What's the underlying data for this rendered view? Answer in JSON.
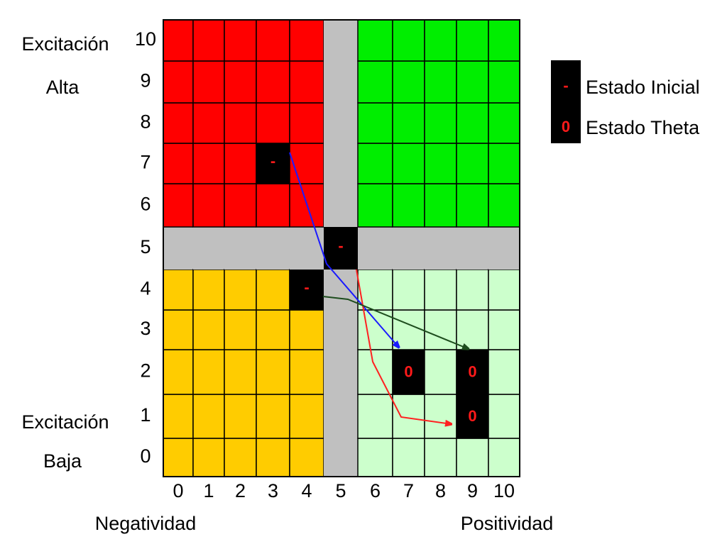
{
  "y_labels": {
    "top": [
      "Excitación",
      "Alta"
    ],
    "bottom": [
      "Excitación",
      "Baja"
    ]
  },
  "x_labels": {
    "left": "Negatividad",
    "right": "Positividad"
  },
  "x_ticks": [
    "0",
    "1",
    "2",
    "3",
    "4",
    "5",
    "6",
    "7",
    "8",
    "9",
    "10"
  ],
  "y_ticks": [
    "0",
    "1",
    "2",
    "3",
    "4",
    "5",
    "6",
    "7",
    "8",
    "9",
    "10"
  ],
  "grid_markers": {
    "initial": [
      "-",
      "-",
      "-"
    ],
    "theta": [
      "0",
      "0",
      "0"
    ]
  },
  "legend": [
    {
      "symbol": "-",
      "label": "Estado Inicial"
    },
    {
      "symbol": "0",
      "label": "Estado Theta"
    }
  ]
}
